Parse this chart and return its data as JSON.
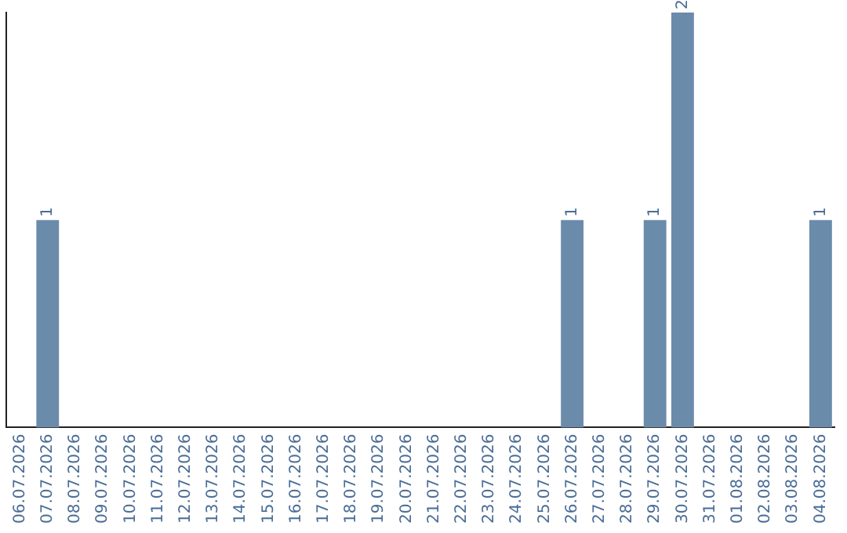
{
  "chart_data": {
    "type": "bar",
    "categories": [
      "06.07.2026",
      "07.07.2026",
      "08.07.2026",
      "09.07.2026",
      "10.07.2026",
      "11.07.2026",
      "12.07.2026",
      "13.07.2026",
      "14.07.2026",
      "15.07.2026",
      "16.07.2026",
      "17.07.2026",
      "18.07.2026",
      "19.07.2026",
      "20.07.2026",
      "21.07.2026",
      "22.07.2026",
      "23.07.2026",
      "24.07.2026",
      "25.07.2026",
      "26.07.2026",
      "27.07.2026",
      "28.07.2026",
      "29.07.2026",
      "30.07.2026",
      "31.07.2026",
      "01.08.2026",
      "02.08.2026",
      "03.08.2026",
      "04.08.2026"
    ],
    "values": [
      0,
      1,
      0,
      0,
      0,
      0,
      0,
      0,
      0,
      0,
      0,
      0,
      0,
      0,
      0,
      0,
      0,
      0,
      0,
      0,
      1,
      0,
      0,
      1,
      2,
      0,
      0,
      0,
      0,
      1
    ],
    "value_labels": [
      null,
      "1",
      null,
      null,
      null,
      null,
      null,
      null,
      null,
      null,
      null,
      null,
      null,
      null,
      null,
      null,
      null,
      null,
      null,
      null,
      "1",
      null,
      null,
      "1",
      "2",
      null,
      null,
      null,
      null,
      "1"
    ],
    "color": "#6b8bab",
    "grid": false,
    "legend": false,
    "tick_labels": "x"
  }
}
